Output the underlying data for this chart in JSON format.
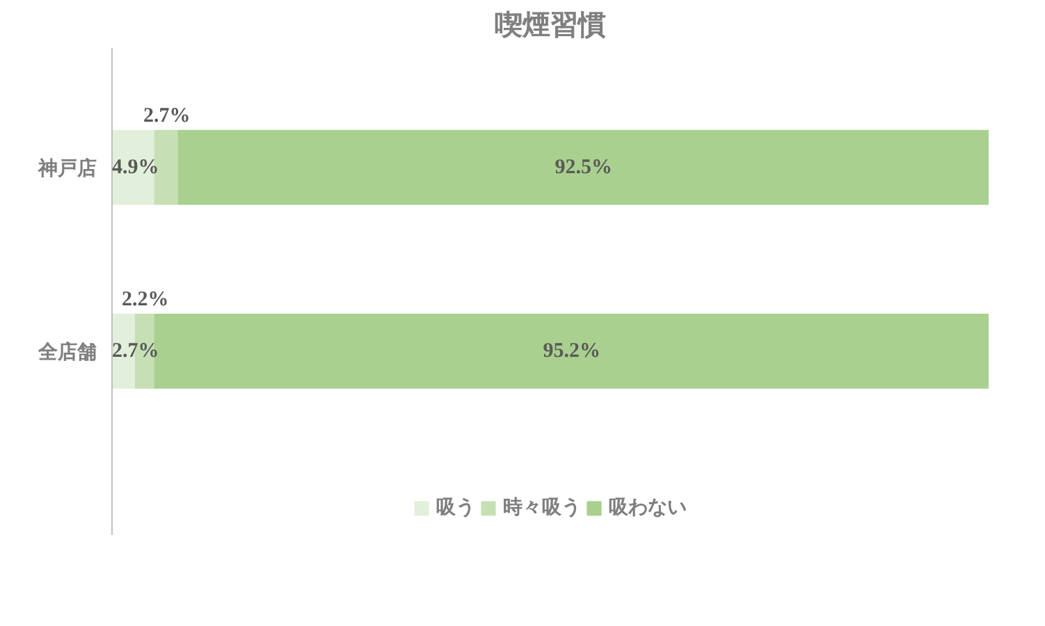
{
  "chart_data": {
    "type": "bar",
    "orientation": "horizontal",
    "stacked": true,
    "title": "喫煙習慣",
    "categories": [
      "神戸店",
      "全店舗"
    ],
    "series": [
      {
        "name": "吸う",
        "color": "#e2efda",
        "values": [
          4.9,
          2.7
        ],
        "value_labels": [
          "4.9%",
          "2.7%"
        ]
      },
      {
        "name": "時々吸う",
        "color": "#c6e0b4",
        "values": [
          2.7,
          2.2
        ],
        "value_labels": [
          "2.7%",
          "2.2%"
        ]
      },
      {
        "name": "吸わない",
        "color": "#a9d08e",
        "values": [
          92.5,
          95.2
        ],
        "value_labels": [
          "92.5%",
          "95.2%"
        ]
      }
    ],
    "legend": "bottom"
  }
}
